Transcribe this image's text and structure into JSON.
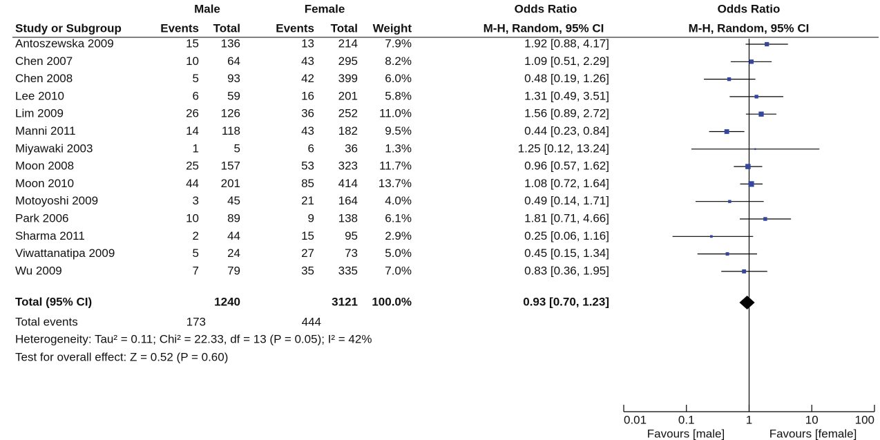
{
  "table": {
    "group_headers": {
      "male": "Male",
      "female": "Female",
      "or": "Odds Ratio"
    },
    "headers": [
      "Study or Subgroup",
      "Events",
      "Total",
      "Events",
      "Total",
      "Weight",
      "M-H, Random, 95% CI"
    ],
    "rows": [
      [
        "Antoszewska 2009",
        15,
        136,
        13,
        214,
        "7.9%",
        "1.92 [0.88, 4.17]"
      ],
      [
        "Chen 2007",
        10,
        64,
        43,
        295,
        "8.2%",
        "1.09 [0.51, 2.29]"
      ],
      [
        "Chen 2008",
        5,
        93,
        42,
        399,
        "6.0%",
        "0.48 [0.19, 1.26]"
      ],
      [
        "Lee 2010",
        6,
        59,
        16,
        201,
        "5.8%",
        "1.31 [0.49, 3.51]"
      ],
      [
        "Lim 2009",
        26,
        126,
        36,
        252,
        "11.0%",
        "1.56 [0.89, 2.72]"
      ],
      [
        "Manni 2011",
        14,
        118,
        43,
        182,
        "9.5%",
        "0.44 [0.23, 0.84]"
      ],
      [
        "Miyawaki 2003",
        1,
        5,
        6,
        36,
        "1.3%",
        "1.25 [0.12, 13.24]"
      ],
      [
        "Moon 2008",
        25,
        157,
        53,
        323,
        "11.7%",
        "0.96 [0.57, 1.62]"
      ],
      [
        "Moon 2010",
        44,
        201,
        85,
        414,
        "13.7%",
        "1.08 [0.72, 1.64]"
      ],
      [
        "Motoyoshi 2009",
        3,
        45,
        21,
        164,
        "4.0%",
        "0.49 [0.14, 1.71]"
      ],
      [
        "Park 2006",
        10,
        89,
        9,
        138,
        "6.1%",
        "1.81 [0.71, 4.66]"
      ],
      [
        "Sharma 2011",
        2,
        44,
        15,
        95,
        "2.9%",
        "0.25 [0.06, 1.16]"
      ],
      [
        "Viwattanatipa 2009",
        5,
        24,
        27,
        73,
        "5.0%",
        "0.45 [0.15, 1.34]"
      ],
      [
        "Wu 2009",
        7,
        79,
        35,
        335,
        "7.0%",
        "0.83 [0.36, 1.95]"
      ]
    ],
    "total": {
      "label": "Total (95% CI)",
      "male_total": 1240,
      "female_total": 3121,
      "weight": "100.0%",
      "or": "0.93 [0.70, 1.23]"
    },
    "total_events": {
      "label": "Total events",
      "male": 173,
      "female": 444
    },
    "heterogeneity": "Heterogeneity: Tau² = 0.11; Chi² = 22.33, df = 13 (P = 0.05); I² = 42%",
    "overall_effect": "Test for overall effect: Z = 0.52 (P = 0.60)"
  },
  "chart_data": {
    "type": "forest",
    "title": "Odds Ratio",
    "subtitle": "M-H, Random, 95% CI",
    "estimates": [
      1.92,
      1.09,
      0.48,
      1.31,
      1.56,
      0.44,
      1.25,
      0.96,
      1.08,
      0.49,
      1.81,
      0.25,
      0.45,
      0.83
    ],
    "ci_low": [
      0.88,
      0.51,
      0.19,
      0.49,
      0.89,
      0.23,
      0.12,
      0.57,
      0.72,
      0.14,
      0.71,
      0.06,
      0.15,
      0.36
    ],
    "ci_high": [
      4.17,
      2.29,
      1.26,
      3.51,
      2.72,
      0.84,
      13.24,
      1.62,
      1.64,
      1.71,
      4.66,
      1.16,
      1.34,
      1.95
    ],
    "weights": [
      7.9,
      8.2,
      6.0,
      5.8,
      11.0,
      9.5,
      1.3,
      11.7,
      13.7,
      4.0,
      6.1,
      2.9,
      5.0,
      7.0
    ],
    "total": {
      "estimate": 0.93,
      "ci_low": 0.7,
      "ci_high": 1.23
    },
    "xlim": [
      0.01,
      100
    ],
    "xticks": [
      0.01,
      0.1,
      1,
      10,
      100
    ],
    "log_scale": true,
    "xlabels": [
      "Favours [male]",
      "Favours [female]"
    ],
    "color": "#3346a0"
  }
}
